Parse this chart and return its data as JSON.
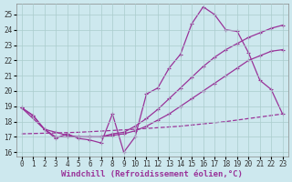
{
  "xlabel": "Windchill (Refroidissement éolien,°C)",
  "background_color": "#cde8ee",
  "grid_color": "#aacccc",
  "line_color": "#993399",
  "xlim": [
    -0.5,
    23.5
  ],
  "ylim": [
    15.7,
    25.7
  ],
  "yticks": [
    16,
    17,
    18,
    19,
    20,
    21,
    22,
    23,
    24,
    25
  ],
  "xticks": [
    0,
    1,
    2,
    3,
    4,
    5,
    6,
    7,
    8,
    9,
    10,
    11,
    12,
    13,
    14,
    15,
    16,
    17,
    18,
    19,
    20,
    21,
    22,
    23
  ],
  "curve1_x": [
    0,
    1,
    2,
    3,
    4,
    5,
    6,
    7,
    8,
    9,
    10,
    11,
    12,
    13,
    14,
    15,
    16,
    17,
    18,
    19,
    20,
    21,
    22,
    23
  ],
  "curve1_y": [
    18.9,
    18.4,
    17.5,
    16.9,
    17.2,
    16.9,
    16.8,
    16.6,
    18.5,
    16.0,
    17.0,
    19.8,
    20.2,
    21.5,
    22.4,
    24.4,
    25.5,
    25.0,
    24.0,
    23.9,
    22.5,
    20.7,
    20.1,
    18.5
  ],
  "curve2_x": [
    0,
    2,
    3,
    4,
    5,
    6,
    7,
    8,
    9,
    10,
    11,
    12,
    13,
    14,
    15,
    16,
    17,
    18,
    19,
    20,
    21,
    22,
    23
  ],
  "curve2_y": [
    18.9,
    17.5,
    17.3,
    17.1,
    17.0,
    17.0,
    17.0,
    17.2,
    17.3,
    17.7,
    18.2,
    18.8,
    19.5,
    20.2,
    20.9,
    21.6,
    22.2,
    22.7,
    23.1,
    23.5,
    23.8,
    24.1,
    24.3
  ],
  "curve3_x": [
    0,
    1,
    2,
    3,
    4,
    5,
    6,
    7,
    8,
    9,
    10,
    11,
    12,
    13,
    14,
    15,
    16,
    17,
    18,
    19,
    20,
    21,
    22,
    23
  ],
  "curve3_y": [
    18.9,
    18.4,
    17.5,
    17.0,
    17.0,
    17.0,
    17.0,
    17.0,
    17.1,
    17.2,
    17.4,
    17.7,
    18.1,
    18.5,
    19.0,
    19.5,
    20.0,
    20.5,
    21.0,
    21.5,
    22.0,
    22.3,
    22.6,
    22.7
  ],
  "curve4_x": [
    0,
    5,
    10,
    14,
    18,
    23
  ],
  "curve4_y": [
    17.2,
    17.3,
    17.5,
    17.7,
    18.0,
    18.5
  ],
  "markersize": 3,
  "linewidth": 0.9,
  "tick_fontsize": 5.5,
  "label_fontsize": 6.5
}
